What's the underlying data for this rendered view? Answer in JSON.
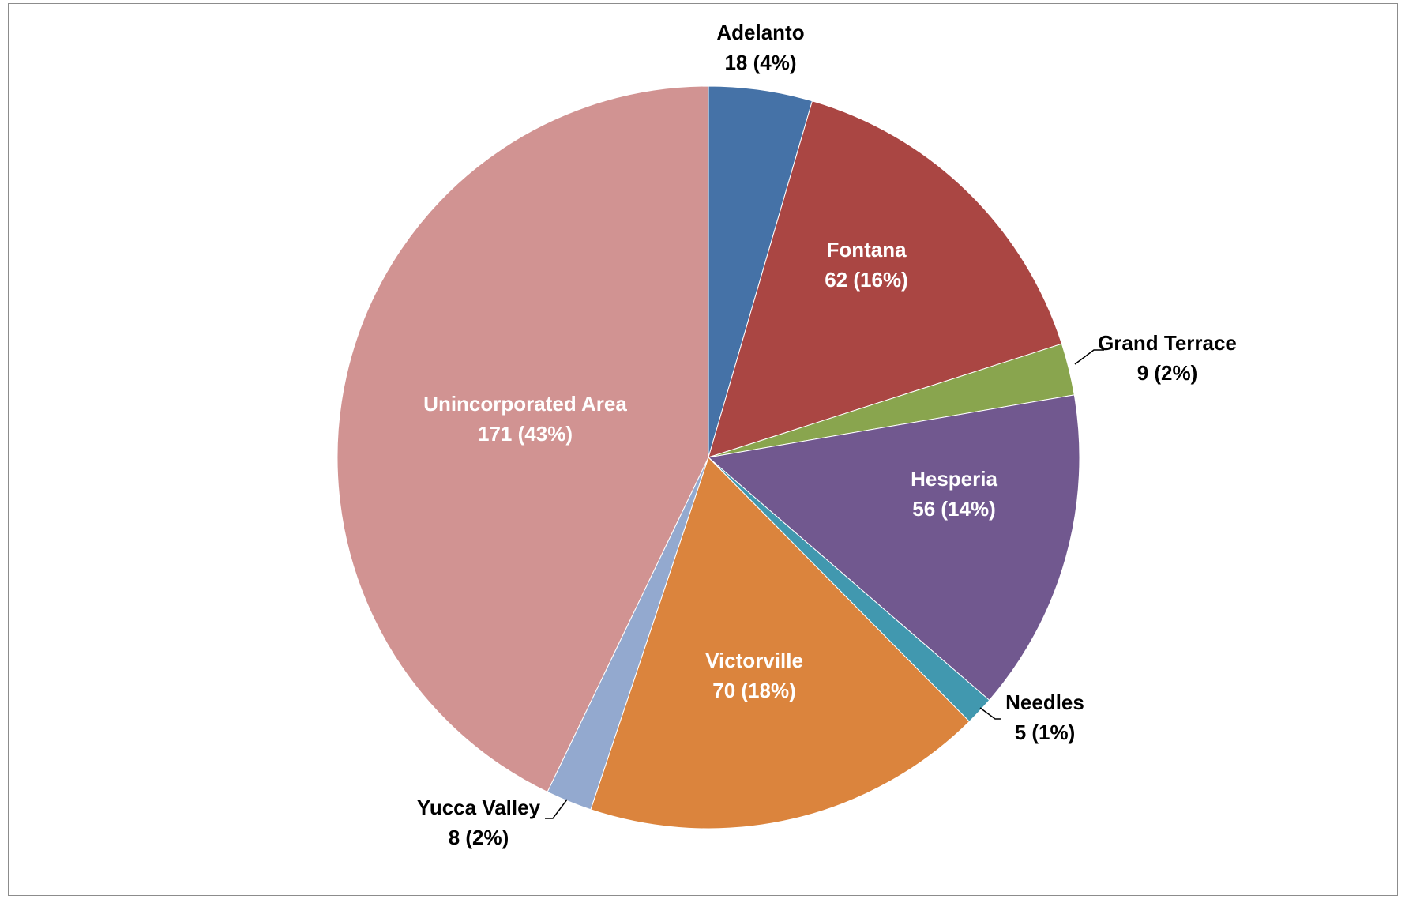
{
  "chart_data": {
    "type": "pie",
    "title": "",
    "legend": "none",
    "slices": [
      {
        "label": "Adelanto",
        "value": 18,
        "percent": "4%",
        "text": "18 (4%)",
        "color": "#4572A7",
        "label_pos": "outside-top"
      },
      {
        "label": "Fontana",
        "value": 62,
        "percent": "16%",
        "text": "62 (16%)",
        "color": "#AA4643",
        "label_pos": "inside"
      },
      {
        "label": "Grand Terrace",
        "value": 9,
        "percent": "2%",
        "text": "9 (2%)",
        "color": "#89A54E",
        "label_pos": "outside-leader"
      },
      {
        "label": "Hesperia",
        "value": 56,
        "percent": "14%",
        "text": "56 (14%)",
        "color": "#71588F",
        "label_pos": "inside"
      },
      {
        "label": "Needles",
        "value": 5,
        "percent": "1%",
        "text": "5 (1%)",
        "color": "#4198AF",
        "label_pos": "outside-leader"
      },
      {
        "label": "Victorville",
        "value": 70,
        "percent": "18%",
        "text": "70 (18%)",
        "color": "#DB843D",
        "label_pos": "inside"
      },
      {
        "label": "Yucca Valley",
        "value": 8,
        "percent": "2%",
        "text": "8 (2%)",
        "color": "#93A9CF",
        "label_pos": "outside-leader"
      },
      {
        "label": "Unincorporated Area",
        "value": 171,
        "percent": "43%",
        "text": "171 (43%)",
        "color": "#D19392",
        "label_pos": "inside"
      }
    ]
  }
}
